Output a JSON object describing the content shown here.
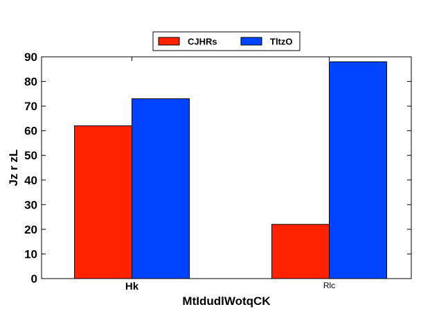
{
  "chart_data": {
    "type": "bar",
    "categories": [
      "Hk",
      "Rlc"
    ],
    "series": [
      {
        "name": "CJHRs",
        "values": [
          62,
          22
        ],
        "color": "#ff2200"
      },
      {
        "name": "TltzO",
        "values": [
          73,
          88
        ],
        "color": "#0044ff"
      }
    ],
    "xlabel": "MtIdudlWotqCK",
    "ylabel": "Jz r zL",
    "ylim": [
      0,
      90
    ],
    "yticks": [
      0,
      10,
      20,
      30,
      40,
      50,
      60,
      70,
      80,
      90
    ],
    "grid": false,
    "legend_position": "top-center"
  }
}
